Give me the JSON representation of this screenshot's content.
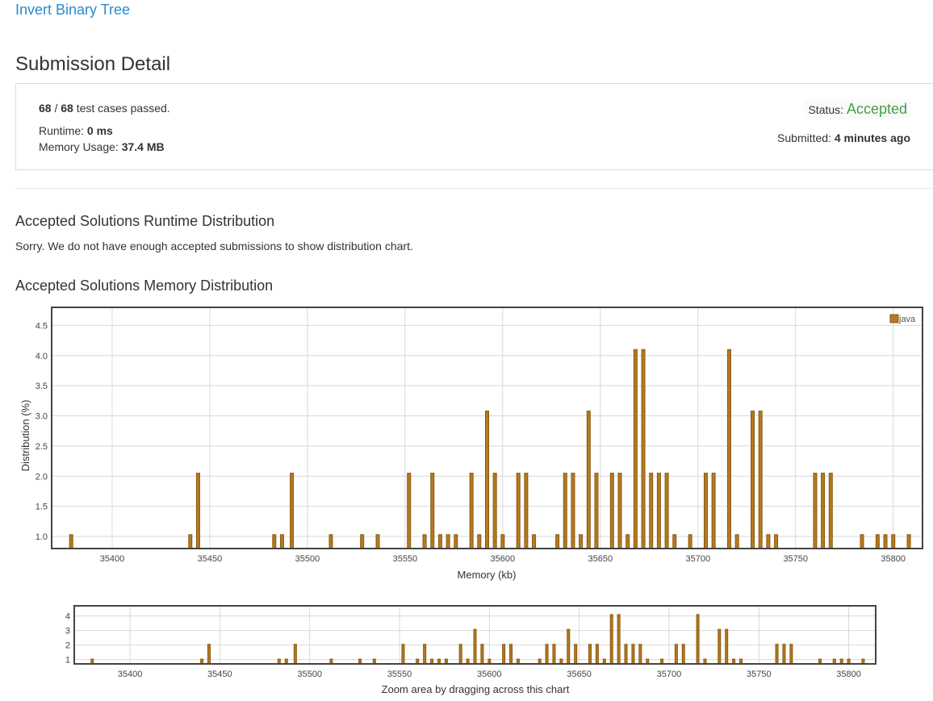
{
  "problem": {
    "title": "Invert Binary Tree"
  },
  "page_title": "Submission Detail",
  "detail": {
    "passed": "68",
    "slash": " / ",
    "total": "68",
    "passed_suffix": " test cases passed.",
    "runtime_label": "Runtime: ",
    "runtime_value": "0 ms",
    "memory_label": "Memory Usage: ",
    "memory_value": "37.4 MB",
    "status_label": "Status: ",
    "status_value": "Accepted",
    "status_color": "#43a047",
    "submitted_label": "Submitted: ",
    "submitted_value": "4 minutes ago"
  },
  "runtime_section": {
    "title": "Accepted Solutions Runtime Distribution",
    "message": "Sorry. We do not have enough accepted submissions to show distribution chart."
  },
  "memory_section": {
    "title": "Accepted Solutions Memory Distribution"
  },
  "colors": {
    "bar_fill": "#b5791f",
    "bar_stroke": "#8a5a12",
    "link": "#2a8bd0"
  },
  "chart_data": [
    {
      "type": "bar",
      "xlabel": "Memory (kb)",
      "ylabel": "Distribution (%)",
      "xlim": [
        35369,
        35815
      ],
      "ylim": [
        0.8,
        4.8
      ],
      "xticks": [
        35400,
        35450,
        35500,
        35550,
        35600,
        35650,
        35700,
        35750,
        35800
      ],
      "yticks": [
        1.0,
        1.5,
        2.0,
        2.5,
        3.0,
        3.5,
        4.0,
        4.5
      ],
      "grid": true,
      "legend_position": "top-right",
      "series": [
        {
          "name": "java",
          "x": [
            35379,
            35440,
            35444,
            35483,
            35487,
            35492,
            35512,
            35528,
            35536,
            35552,
            35560,
            35564,
            35568,
            35572,
            35576,
            35584,
            35588,
            35592,
            35596,
            35600,
            35608,
            35612,
            35616,
            35628,
            35632,
            35636,
            35640,
            35644,
            35648,
            35656,
            35660,
            35664,
            35668,
            35672,
            35676,
            35680,
            35684,
            35688,
            35696,
            35704,
            35708,
            35716,
            35720,
            35728,
            35732,
            35736,
            35740,
            35760,
            35764,
            35768,
            35784,
            35792,
            35796,
            35800,
            35808
          ],
          "values": [
            1.03,
            1.03,
            2.05,
            1.03,
            1.03,
            2.05,
            1.03,
            1.03,
            1.03,
            2.05,
            1.03,
            2.05,
            1.03,
            1.03,
            1.03,
            2.05,
            1.03,
            3.08,
            2.05,
            1.03,
            2.05,
            2.05,
            1.03,
            1.03,
            2.05,
            2.05,
            1.03,
            3.08,
            2.05,
            2.05,
            2.05,
            1.03,
            4.1,
            4.1,
            2.05,
            2.05,
            2.05,
            1.03,
            1.03,
            2.05,
            2.05,
            4.1,
            1.03,
            3.08,
            3.08,
            1.03,
            1.03,
            2.05,
            2.05,
            2.05,
            1.03,
            1.03,
            1.03,
            1.03,
            1.03
          ]
        }
      ]
    },
    {
      "type": "bar",
      "xlabel": "Zoom area by dragging across this chart",
      "ylabel": "",
      "xlim": [
        35369,
        35815
      ],
      "ylim": [
        0.7,
        4.7
      ],
      "xticks": [
        35400,
        35450,
        35500,
        35550,
        35600,
        35650,
        35700,
        35750,
        35800
      ],
      "yticks": [
        1,
        2,
        3,
        4
      ],
      "grid": true,
      "series": [
        {
          "name": "",
          "x": [
            35379,
            35440,
            35444,
            35483,
            35487,
            35492,
            35512,
            35528,
            35536,
            35552,
            35560,
            35564,
            35568,
            35572,
            35576,
            35584,
            35588,
            35592,
            35596,
            35600,
            35608,
            35612,
            35616,
            35628,
            35632,
            35636,
            35640,
            35644,
            35648,
            35656,
            35660,
            35664,
            35668,
            35672,
            35676,
            35680,
            35684,
            35688,
            35696,
            35704,
            35708,
            35716,
            35720,
            35728,
            35732,
            35736,
            35740,
            35760,
            35764,
            35768,
            35784,
            35792,
            35796,
            35800,
            35808
          ],
          "values": [
            1.03,
            1.03,
            2.05,
            1.03,
            1.03,
            2.05,
            1.03,
            1.03,
            1.03,
            2.05,
            1.03,
            2.05,
            1.03,
            1.03,
            1.03,
            2.05,
            1.03,
            3.08,
            2.05,
            1.03,
            2.05,
            2.05,
            1.03,
            1.03,
            2.05,
            2.05,
            1.03,
            3.08,
            2.05,
            2.05,
            2.05,
            1.03,
            4.1,
            4.1,
            2.05,
            2.05,
            2.05,
            1.03,
            1.03,
            2.05,
            2.05,
            4.1,
            1.03,
            3.08,
            3.08,
            1.03,
            1.03,
            2.05,
            2.05,
            2.05,
            1.03,
            1.03,
            1.03,
            1.03,
            1.03
          ]
        }
      ]
    }
  ]
}
